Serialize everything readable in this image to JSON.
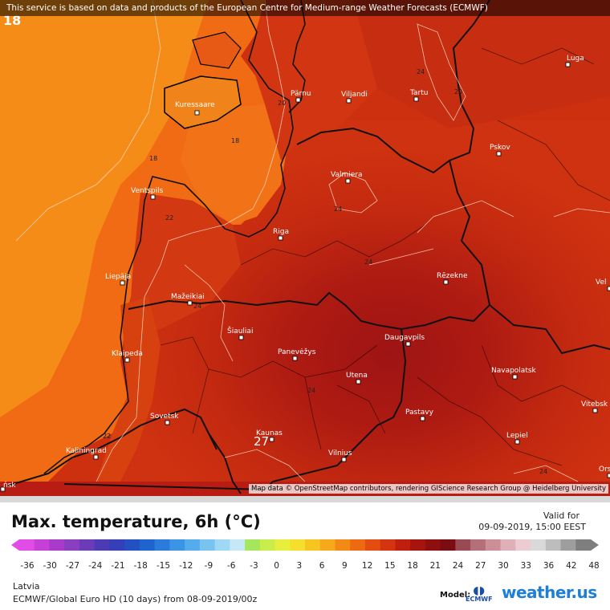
{
  "banner": "This service is based on data and products of the European Centre for Medium-range Weather Forecasts (ECMWF)",
  "attribution": "Map data © OpenStreetMap contributors, rendering GIScience Research Group @ Heidelberg University",
  "title": "Max. temperature, 6h (°C)",
  "valid_label": "Valid for",
  "valid_time": "09-09-2019, 15:00 EEST",
  "region": "Latvia",
  "model_run": "ECMWF/Global Euro HD (10 days) from 08-09-2019/00z",
  "model_label": "Model:",
  "model_logo_text": "ECMWF",
  "brand": "weather.us",
  "corner_value": "18",
  "cities": [
    {
      "name": "Pärnu"
    },
    {
      "name": "Viljandi"
    },
    {
      "name": "Tartu"
    },
    {
      "name": "Luga"
    },
    {
      "name": "Kuressaare"
    },
    {
      "name": "Pskov"
    },
    {
      "name": "Valmiera"
    },
    {
      "name": "Ventspils"
    },
    {
      "name": "Riga"
    },
    {
      "name": "Liepāja"
    },
    {
      "name": "Rēzekne"
    },
    {
      "name": "Mažeikiai"
    },
    {
      "name": "Šiauliai"
    },
    {
      "name": "Panevėžys"
    },
    {
      "name": "Daugavpils"
    },
    {
      "name": "Klaipeda"
    },
    {
      "name": "Utena"
    },
    {
      "name": "Navapolatsk"
    },
    {
      "name": "Sovetsk"
    },
    {
      "name": "Pastavy"
    },
    {
      "name": "Vitebsk"
    },
    {
      "name": "Kaunas"
    },
    {
      "name": "Lepiel"
    },
    {
      "name": "Kaliningrad"
    },
    {
      "name": "Vilnius"
    },
    {
      "name": "Vel"
    },
    {
      "name": "Ors"
    },
    {
      "name": "ńsk"
    }
  ],
  "isotherm_labels": [
    "18",
    "18",
    "20",
    "20",
    "22",
    "22",
    "24",
    "24",
    "24",
    "24",
    "24",
    "22",
    "24"
  ],
  "max_marker": "27",
  "scale": {
    "ticks": [
      "-36",
      "-30",
      "-27",
      "-24",
      "-21",
      "-18",
      "-15",
      "-12",
      "-9",
      "-6",
      "-3",
      "0",
      "3",
      "6",
      "9",
      "12",
      "15",
      "18",
      "21",
      "24",
      "27",
      "30",
      "33",
      "36",
      "42",
      "48"
    ],
    "colors": [
      "#e24be5",
      "#c63fd6",
      "#a83bc9",
      "#8a3ec0",
      "#6a3cb8",
      "#4d3ab5",
      "#3540b8",
      "#2451c2",
      "#1f63cf",
      "#2a7bdb",
      "#3b94e4",
      "#55acec",
      "#79c3f0",
      "#9fd8f4",
      "#c5e8f7",
      "#a5e65a",
      "#c9ed4a",
      "#e8ee3d",
      "#f5de2c",
      "#f7c520",
      "#f6a91a",
      "#f38a16",
      "#ee6a12",
      "#e44d10",
      "#d4340f",
      "#bf1f0f",
      "#a6140f",
      "#8e0f10",
      "#7a0d12",
      "#9a4a52",
      "#b56f78",
      "#cc8f98",
      "#dfb0b7",
      "#ecccd1",
      "#d9d9d9",
      "#bdbdbd",
      "#9e9e9e",
      "#7e7e7e"
    ]
  }
}
